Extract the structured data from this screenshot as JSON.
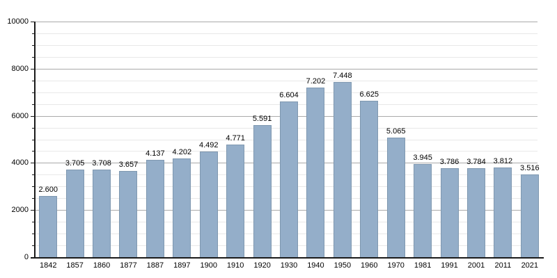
{
  "chart_data": {
    "type": "bar",
    "title": "",
    "xlabel": "",
    "ylabel": "",
    "categories": [
      "1842",
      "1857",
      "1860",
      "1877",
      "1887",
      "1897",
      "1900",
      "1910",
      "1920",
      "1930",
      "1940",
      "1950",
      "1960",
      "1970",
      "1981",
      "1991",
      "2001",
      "2011",
      "2021"
    ],
    "values": [
      2600,
      3705,
      3708,
      3657,
      4137,
      4202,
      4492,
      4771,
      5591,
      6604,
      7202,
      7448,
      6625,
      5065,
      3945,
      3786,
      3784,
      3812,
      3516
    ],
    "value_labels": [
      "2.600",
      "3.705",
      "3.708",
      "3.657",
      "4.137",
      "4.202",
      "4.492",
      "4.771",
      "5.591",
      "6.604",
      "7.202",
      "7.448",
      "6.625",
      "5.065",
      "3.945",
      "3.786",
      "3.784",
      "3.812",
      "3.516"
    ],
    "ylim": [
      0,
      10000
    ],
    "y_major_ticks": [
      0,
      2000,
      4000,
      6000,
      8000,
      10000
    ],
    "y_tick_labels": [
      "0",
      "2000",
      "4000",
      "6000",
      "8000",
      "10000"
    ],
    "y_minor_step": 500,
    "grid": "horizontal",
    "legend": "none",
    "colors": {
      "bar_fill": "#94aec9",
      "bar_border": "#7f98b0",
      "major_grid": "#a9a9a9",
      "minor_grid": "#e8e8e8",
      "axis": "#1a1a1a",
      "label_text": "#000000",
      "background": "#ffffff"
    }
  }
}
